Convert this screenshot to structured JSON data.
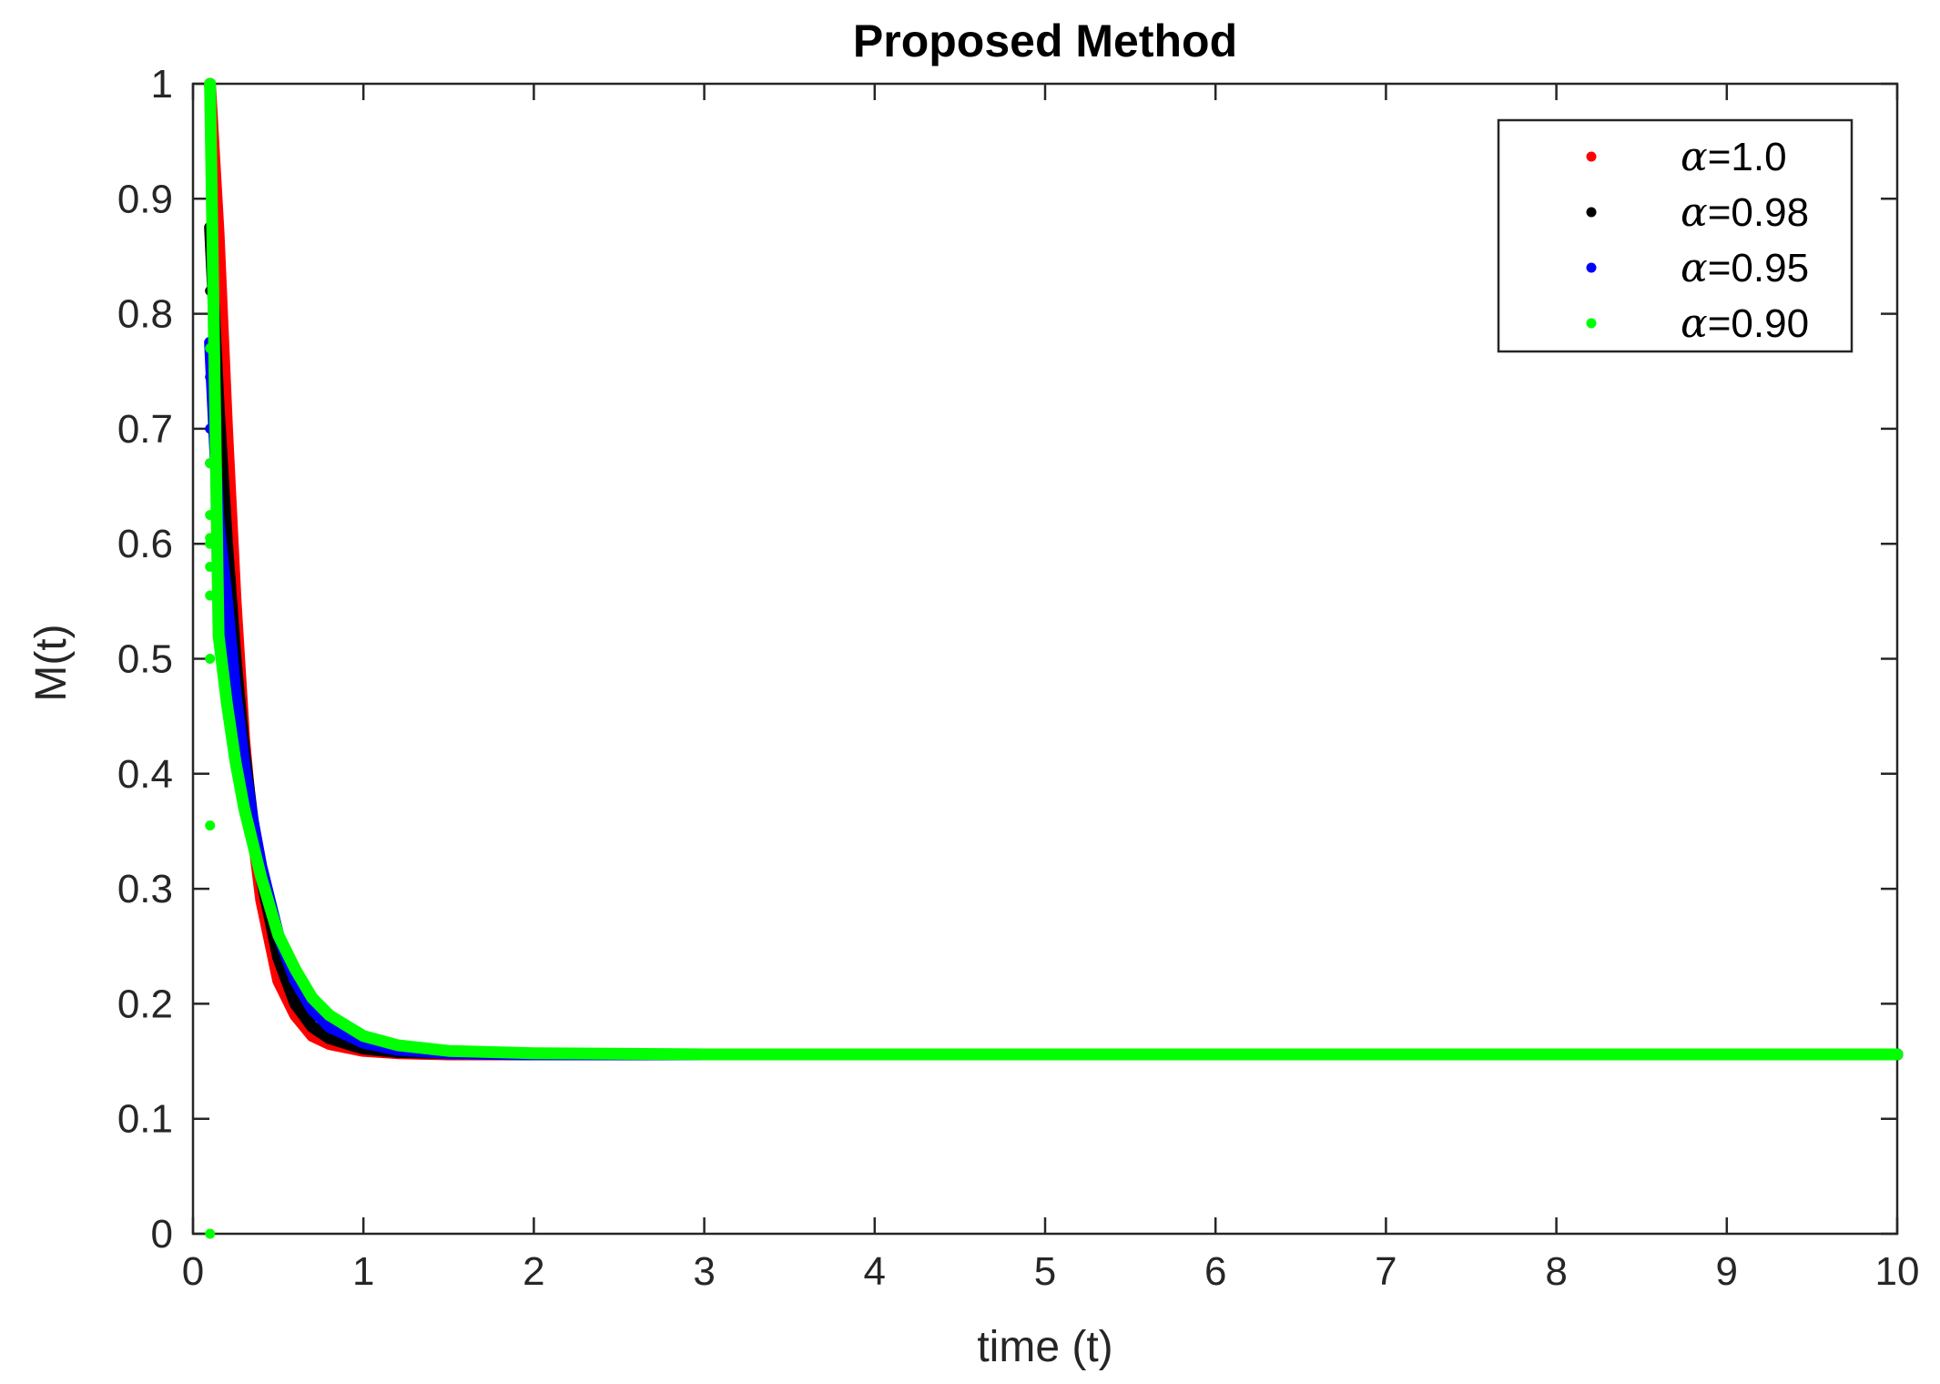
{
  "chart_data": {
    "type": "scatter",
    "title": "Proposed Method",
    "xlabel": "time (t)",
    "ylabel": "M(t)",
    "xlim": [
      0,
      10
    ],
    "ylim": [
      0,
      1
    ],
    "xticks": [
      "0",
      "1",
      "2",
      "3",
      "4",
      "5",
      "6",
      "7",
      "8",
      "9",
      "10"
    ],
    "yticks": [
      "0",
      "0.1",
      "0.2",
      "0.3",
      "0.4",
      "0.5",
      "0.6",
      "0.7",
      "0.8",
      "0.9",
      "1"
    ],
    "grid": false,
    "legend_position": "top-right",
    "legend_symbol": "α",
    "series": [
      {
        "name": "=1.0",
        "color": "#ff0000",
        "x": [
          0.1,
          0.1,
          0.15,
          0.2,
          0.25,
          0.3,
          0.35,
          0.4,
          0.5,
          0.6,
          0.7,
          0.8,
          1.0,
          1.2,
          1.5,
          2.0,
          3.0,
          5.0,
          7.5,
          10.0
        ],
        "y": [
          1.0,
          0.99,
          0.87,
          0.7,
          0.55,
          0.43,
          0.35,
          0.29,
          0.22,
          0.19,
          0.172,
          0.165,
          0.159,
          0.157,
          0.156,
          0.156,
          0.156,
          0.156,
          0.156,
          0.156
        ]
      },
      {
        "name": "=0.98",
        "color": "#000000",
        "x": [
          0.1,
          0.1,
          0.1,
          0.15,
          0.2,
          0.25,
          0.3,
          0.35,
          0.4,
          0.5,
          0.6,
          0.7,
          0.8,
          1.0,
          1.2,
          1.5,
          2.0,
          3.0,
          5.0,
          7.5,
          10.0
        ],
        "y": [
          0.875,
          0.86,
          0.82,
          0.72,
          0.6,
          0.5,
          0.42,
          0.36,
          0.31,
          0.24,
          0.2,
          0.18,
          0.17,
          0.161,
          0.158,
          0.157,
          0.156,
          0.156,
          0.156,
          0.156,
          0.156
        ]
      },
      {
        "name": "=0.95",
        "color": "#0000ff",
        "x": [
          0.1,
          0.1,
          0.1,
          0.1,
          0.15,
          0.2,
          0.25,
          0.3,
          0.35,
          0.4,
          0.5,
          0.6,
          0.7,
          0.8,
          1.0,
          1.2,
          1.5,
          2.0,
          3.0,
          5.0,
          7.5,
          10.0
        ],
        "y": [
          0.775,
          0.745,
          0.7,
          0.67,
          0.62,
          0.55,
          0.47,
          0.41,
          0.36,
          0.32,
          0.26,
          0.22,
          0.195,
          0.18,
          0.166,
          0.16,
          0.157,
          0.156,
          0.156,
          0.156,
          0.156,
          0.156
        ]
      },
      {
        "name": "=0.90",
        "color": "#00ff00",
        "x": [
          0.1,
          0.1,
          0.1,
          0.1,
          0.1,
          0.1,
          0.1,
          0.1,
          0.1,
          0.1,
          0.1,
          0.15,
          0.2,
          0.25,
          0.3,
          0.35,
          0.4,
          0.5,
          0.6,
          0.7,
          0.8,
          1.0,
          1.2,
          1.5,
          2.0,
          3.0,
          5.0,
          7.5,
          10.0
        ],
        "y": [
          1.0,
          0.77,
          0.67,
          0.625,
          0.605,
          0.58,
          0.555,
          0.5,
          0.355,
          0.0,
          0.6,
          0.52,
          0.46,
          0.41,
          0.37,
          0.34,
          0.31,
          0.26,
          0.23,
          0.205,
          0.19,
          0.172,
          0.164,
          0.159,
          0.157,
          0.156,
          0.156,
          0.156,
          0.156
        ]
      }
    ]
  }
}
